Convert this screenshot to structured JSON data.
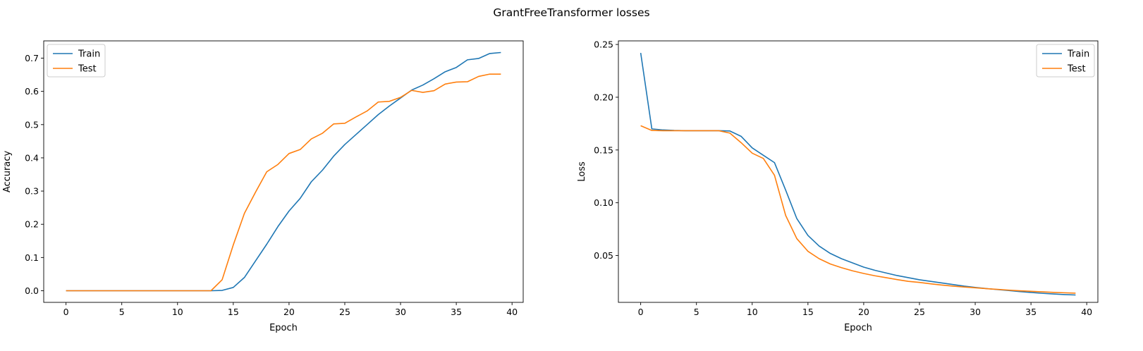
{
  "suptitle": "GrantFreeTransformer losses",
  "chart_data": [
    {
      "type": "line",
      "xlabel": "Epoch",
      "ylabel": "Accuracy",
      "xlim": [
        -2,
        41
      ],
      "ylim": [
        -0.035,
        0.752
      ],
      "xticks": [
        0,
        5,
        10,
        15,
        20,
        25,
        30,
        35,
        40
      ],
      "yticks": [
        0.0,
        0.1,
        0.2,
        0.3,
        0.4,
        0.5,
        0.6,
        0.7
      ],
      "ytick_labels": [
        "0.0",
        "0.1",
        "0.2",
        "0.3",
        "0.4",
        "0.5",
        "0.6",
        "0.7"
      ],
      "legend_loc": "upper left",
      "grid": false,
      "x": [
        0,
        1,
        2,
        3,
        4,
        5,
        6,
        7,
        8,
        9,
        10,
        11,
        12,
        13,
        14,
        15,
        16,
        17,
        18,
        19,
        20,
        21,
        22,
        23,
        24,
        25,
        26,
        27,
        28,
        29,
        30,
        31,
        32,
        33,
        34,
        35,
        36,
        37,
        38,
        39
      ],
      "series": [
        {
          "name": "Train",
          "color": "#1f77b4",
          "values": [
            0,
            0,
            0,
            0,
            0,
            0,
            0,
            0,
            0,
            0,
            0,
            0,
            0,
            0,
            0.001,
            0.01,
            0.04,
            0.09,
            0.14,
            0.193,
            0.24,
            0.278,
            0.328,
            0.363,
            0.405,
            0.44,
            0.47,
            0.5,
            0.53,
            0.556,
            0.58,
            0.604,
            0.619,
            0.638,
            0.659,
            0.672,
            0.695,
            0.699,
            0.714,
            0.717
          ]
        },
        {
          "name": "Test",
          "color": "#ff7f0e",
          "values": [
            0,
            0,
            0,
            0,
            0,
            0,
            0,
            0,
            0,
            0,
            0,
            0,
            0,
            0,
            0.033,
            0.138,
            0.233,
            0.297,
            0.358,
            0.38,
            0.413,
            0.425,
            0.457,
            0.474,
            0.502,
            0.504,
            0.523,
            0.541,
            0.568,
            0.57,
            0.582,
            0.603,
            0.597,
            0.602,
            0.622,
            0.628,
            0.629,
            0.645,
            0.652,
            0.652
          ]
        }
      ]
    },
    {
      "type": "line",
      "xlabel": "Epoch",
      "ylabel": "Loss",
      "xlim": [
        -2,
        41
      ],
      "ylim": [
        0.0056,
        0.2534
      ],
      "xticks": [
        0,
        5,
        10,
        15,
        20,
        25,
        30,
        35,
        40
      ],
      "yticks": [
        0.05,
        0.1,
        0.15,
        0.2,
        0.25
      ],
      "ytick_labels": [
        "0.05",
        "0.10",
        "0.15",
        "0.20",
        "0.25"
      ],
      "legend_loc": "upper right",
      "grid": false,
      "x": [
        0,
        1,
        2,
        3,
        4,
        5,
        6,
        7,
        8,
        9,
        10,
        11,
        12,
        13,
        14,
        15,
        16,
        17,
        18,
        19,
        20,
        21,
        22,
        23,
        24,
        25,
        26,
        27,
        28,
        29,
        30,
        31,
        32,
        33,
        34,
        35,
        36,
        37,
        38,
        39
      ],
      "series": [
        {
          "name": "Train",
          "color": "#1f77b4",
          "values": [
            0.242,
            0.17,
            0.169,
            0.1685,
            0.1683,
            0.1683,
            0.1683,
            0.1683,
            0.168,
            0.163,
            0.152,
            0.145,
            0.138,
            0.112,
            0.085,
            0.069,
            0.059,
            0.052,
            0.047,
            0.043,
            0.039,
            0.036,
            0.0335,
            0.031,
            0.029,
            0.027,
            0.0255,
            0.024,
            0.0225,
            0.021,
            0.0198,
            0.0187,
            0.0177,
            0.0168,
            0.0158,
            0.015,
            0.0142,
            0.0136,
            0.013,
            0.0126
          ]
        },
        {
          "name": "Test",
          "color": "#ff7f0e",
          "values": [
            0.173,
            0.1685,
            0.1683,
            0.1683,
            0.1683,
            0.1683,
            0.1683,
            0.1683,
            0.166,
            0.157,
            0.147,
            0.142,
            0.126,
            0.088,
            0.066,
            0.054,
            0.047,
            0.042,
            0.0385,
            0.0355,
            0.033,
            0.0308,
            0.029,
            0.0272,
            0.0255,
            0.0245,
            0.0232,
            0.022,
            0.021,
            0.0202,
            0.0194,
            0.0186,
            0.0179,
            0.0172,
            0.0166,
            0.0161,
            0.0156,
            0.0151,
            0.0147,
            0.0143
          ]
        }
      ]
    }
  ]
}
